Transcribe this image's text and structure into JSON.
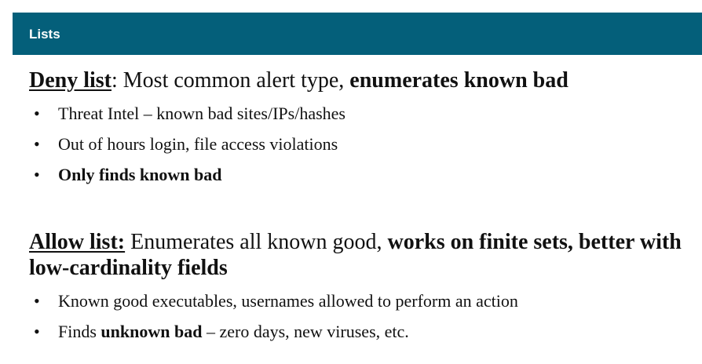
{
  "header": {
    "title": "Lists"
  },
  "deny_section": {
    "label": "Deny list",
    "colon": ":",
    "intro": " Most common alert type, ",
    "emphasis": "enumerates known bad",
    "bullets": [
      {
        "text": "Threat Intel – known bad sites/IPs/hashes"
      },
      {
        "text": "Out of hours login, file access violations"
      },
      {
        "text": "Only finds known bad"
      }
    ]
  },
  "allow_section": {
    "label": "Allow list:",
    "intro": " Enumerates all known good, ",
    "emphasis": "works on finite sets, better with low-cardinality fields",
    "bullets": [
      {
        "text": "Known good executables, usernames allowed to perform an action"
      },
      {
        "prefix": "Finds ",
        "bold": "unknown bad",
        "suffix": " – zero days, new viruses, etc."
      }
    ]
  },
  "colors": {
    "header_bg": "#045f7a",
    "header_text": "#ffffff",
    "body_text": "#111111"
  }
}
